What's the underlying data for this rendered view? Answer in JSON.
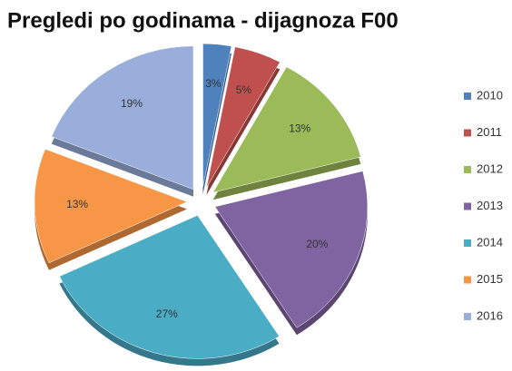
{
  "chart_data": {
    "type": "pie",
    "title": "Pregledi po godinama - dijagnoza F00",
    "categories": [
      "2010",
      "2011",
      "2012",
      "2013",
      "2014",
      "2015",
      "2016"
    ],
    "values": [
      3,
      5,
      13,
      20,
      27,
      13,
      19
    ],
    "value_labels": [
      "3%",
      "5%",
      "13%",
      "20%",
      "27%",
      "13%",
      "19%"
    ],
    "colors": [
      "#4f81bd",
      "#c0504d",
      "#9bbb59",
      "#8064a2",
      "#4bacc6",
      "#f79646",
      "#9aaedb"
    ],
    "legend": "right"
  }
}
